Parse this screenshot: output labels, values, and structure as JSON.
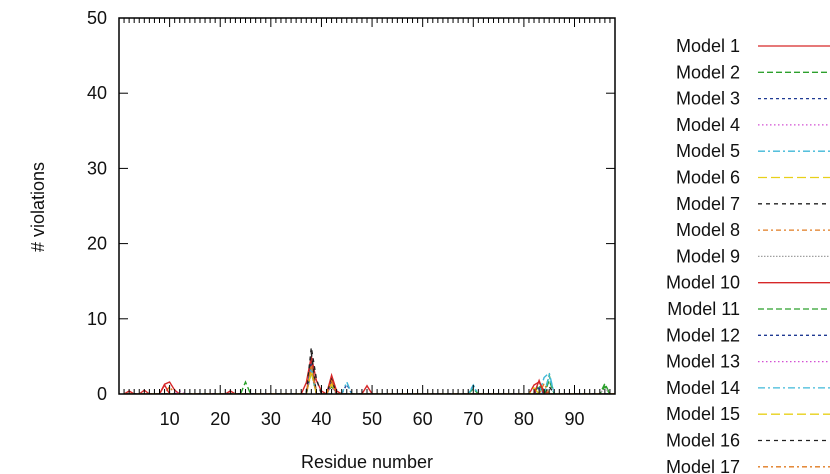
{
  "chart_data": {
    "type": "line",
    "xlabel": "Residue number",
    "ylabel": "# violations",
    "xlim": [
      0,
      98
    ],
    "ylim": [
      0,
      50
    ],
    "x_ticks": [
      10,
      20,
      30,
      40,
      50,
      60,
      70,
      80,
      90
    ],
    "y_ticks": [
      0,
      10,
      20,
      30,
      40,
      50
    ],
    "grid": false,
    "legend_position": "right",
    "series": [
      {
        "name": "Model 1",
        "color": "#d62728",
        "dash": "solid",
        "points": [
          [
            2,
            0.4
          ],
          [
            5,
            0.5
          ],
          [
            9,
            1.3
          ],
          [
            10,
            1.6
          ],
          [
            11,
            0.5
          ],
          [
            22,
            0.4
          ],
          [
            37,
            1.5
          ],
          [
            38,
            5.0
          ],
          [
            39,
            1.8
          ],
          [
            40,
            0.4
          ],
          [
            42,
            2.5
          ],
          [
            43,
            0.4
          ],
          [
            49,
            1.1
          ],
          [
            82,
            1.2
          ],
          [
            83,
            1.6
          ],
          [
            84,
            0.4
          ]
        ]
      },
      {
        "name": "Model 2",
        "color": "#2ca02c",
        "dash": "dash",
        "points": [
          [
            25,
            1.6
          ],
          [
            38,
            3.0
          ],
          [
            42,
            1.0
          ],
          [
            70,
            0.7
          ],
          [
            83,
            1.2
          ],
          [
            85,
            2.5
          ],
          [
            96,
            1.4
          ]
        ]
      },
      {
        "name": "Model 3",
        "color": "#1f3a93",
        "dash": "dot-short",
        "points": [
          [
            38,
            4.2
          ],
          [
            42,
            1.6
          ],
          [
            45,
            1.3
          ],
          [
            83,
            0.8
          ]
        ]
      },
      {
        "name": "Model 4",
        "color": "#d34fd3",
        "dash": "dot",
        "points": [
          [
            12,
            0.4
          ],
          [
            38,
            3.6
          ],
          [
            42,
            1.2
          ]
        ]
      },
      {
        "name": "Model 5",
        "color": "#3fb8d8",
        "dash": "dash-dot",
        "points": [
          [
            38,
            3.2
          ],
          [
            45,
            1.6
          ],
          [
            70,
            1.2
          ],
          [
            84,
            2.2
          ],
          [
            85,
            2.8
          ]
        ]
      },
      {
        "name": "Model 6",
        "color": "#e8d01a",
        "dash": "dash-long",
        "points": [
          [
            38,
            3.4
          ],
          [
            42,
            1.5
          ],
          [
            82,
            0.8
          ]
        ]
      },
      {
        "name": "Model 7",
        "color": "#222222",
        "dash": "dash-short",
        "points": [
          [
            38,
            6.2
          ],
          [
            39,
            2.0
          ],
          [
            42,
            1.8
          ],
          [
            85,
            1.0
          ]
        ]
      },
      {
        "name": "Model 8",
        "color": "#e07b20",
        "dash": "dot-dash",
        "points": [
          [
            10,
            1.0
          ],
          [
            38,
            3.8
          ],
          [
            42,
            2.0
          ],
          [
            84,
            1.4
          ]
        ]
      },
      {
        "name": "Model 9",
        "color": "#a0a0a0",
        "dash": "dot-dense",
        "points": [
          [
            38,
            2.8
          ],
          [
            42,
            1.2
          ],
          [
            96,
            0.9
          ]
        ]
      },
      {
        "name": "Model 10",
        "color": "#d62728",
        "dash": "solid",
        "points": [
          [
            9,
            1.2
          ],
          [
            38,
            4.5
          ],
          [
            42,
            2.2
          ],
          [
            83,
            1.8
          ]
        ]
      },
      {
        "name": "Model 11",
        "color": "#2ca02c",
        "dash": "dash",
        "points": [
          [
            38,
            3.0
          ],
          [
            42,
            1.4
          ],
          [
            85,
            1.8
          ],
          [
            96,
            1.0
          ]
        ]
      },
      {
        "name": "Model 12",
        "color": "#1f3a93",
        "dash": "dot-short",
        "points": [
          [
            38,
            4.0
          ],
          [
            42,
            1.5
          ]
        ]
      },
      {
        "name": "Model 13",
        "color": "#d34fd3",
        "dash": "dot",
        "points": [
          [
            38,
            3.3
          ],
          [
            42,
            1.1
          ]
        ]
      },
      {
        "name": "Model 14",
        "color": "#3fb8d8",
        "dash": "dash-dot",
        "points": [
          [
            38,
            3.5
          ],
          [
            70,
            1.0
          ],
          [
            85,
            2.4
          ]
        ]
      },
      {
        "name": "Model 15",
        "color": "#e8d01a",
        "dash": "dash-long",
        "points": [
          [
            38,
            3.1
          ],
          [
            42,
            1.3
          ]
        ]
      },
      {
        "name": "Model 16",
        "color": "#222222",
        "dash": "dash-short",
        "points": [
          [
            38,
            5.5
          ],
          [
            42,
            1.9
          ]
        ]
      },
      {
        "name": "Model 17",
        "color": "#e07b20",
        "dash": "dot-dash",
        "points": [
          [
            38,
            3.9
          ],
          [
            42,
            1.7
          ]
        ]
      }
    ]
  }
}
